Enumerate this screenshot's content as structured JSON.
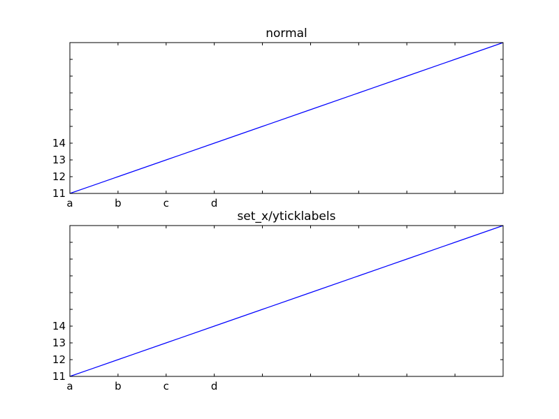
{
  "chart_data": [
    {
      "type": "line",
      "title": "normal",
      "x": [
        0,
        1,
        2,
        3,
        4,
        5,
        6,
        7,
        8,
        9
      ],
      "series": [
        {
          "color": "#0000ff",
          "values": [
            0,
            1,
            2,
            3,
            4,
            5,
            6,
            7,
            8,
            9
          ]
        }
      ],
      "xlim": [
        0,
        9
      ],
      "ylim": [
        0,
        9
      ],
      "xticks": [
        {
          "value": 0,
          "label": "a"
        },
        {
          "value": 1,
          "label": "b"
        },
        {
          "value": 2,
          "label": "c"
        },
        {
          "value": 3,
          "label": "d"
        },
        {
          "value": 4,
          "label": null
        },
        {
          "value": 5,
          "label": null
        },
        {
          "value": 6,
          "label": null
        },
        {
          "value": 7,
          "label": null
        },
        {
          "value": 8,
          "label": null
        },
        {
          "value": 9,
          "label": null
        }
      ],
      "yticks": [
        {
          "value": 0,
          "label": "11"
        },
        {
          "value": 1,
          "label": "12"
        },
        {
          "value": 2,
          "label": "13"
        },
        {
          "value": 3,
          "label": "14"
        },
        {
          "value": 4,
          "label": null
        },
        {
          "value": 5,
          "label": null
        },
        {
          "value": 6,
          "label": null
        },
        {
          "value": 7,
          "label": null
        },
        {
          "value": 8,
          "label": null
        },
        {
          "value": 9,
          "label": null
        }
      ]
    },
    {
      "type": "line",
      "title": "set_x/yticklabels",
      "x": [
        0,
        1,
        2,
        3,
        4,
        5,
        6,
        7,
        8,
        9
      ],
      "series": [
        {
          "color": "#0000ff",
          "values": [
            0,
            1,
            2,
            3,
            4,
            5,
            6,
            7,
            8,
            9
          ]
        }
      ],
      "xlim": [
        0,
        9
      ],
      "ylim": [
        0,
        9
      ],
      "xticks": [
        {
          "value": 0,
          "label": "a"
        },
        {
          "value": 1,
          "label": "b"
        },
        {
          "value": 2,
          "label": "c"
        },
        {
          "value": 3,
          "label": "d"
        },
        {
          "value": 4,
          "label": null
        },
        {
          "value": 5,
          "label": null
        },
        {
          "value": 6,
          "label": null
        },
        {
          "value": 7,
          "label": null
        },
        {
          "value": 8,
          "label": null
        },
        {
          "value": 9,
          "label": null
        }
      ],
      "yticks": [
        {
          "value": 0,
          "label": "11"
        },
        {
          "value": 1,
          "label": "12"
        },
        {
          "value": 2,
          "label": "13"
        },
        {
          "value": 3,
          "label": "14"
        },
        {
          "value": 4,
          "label": null
        },
        {
          "value": 5,
          "label": null
        },
        {
          "value": 6,
          "label": null
        },
        {
          "value": 7,
          "label": null
        },
        {
          "value": 8,
          "label": null
        },
        {
          "value": 9,
          "label": null
        }
      ]
    }
  ]
}
